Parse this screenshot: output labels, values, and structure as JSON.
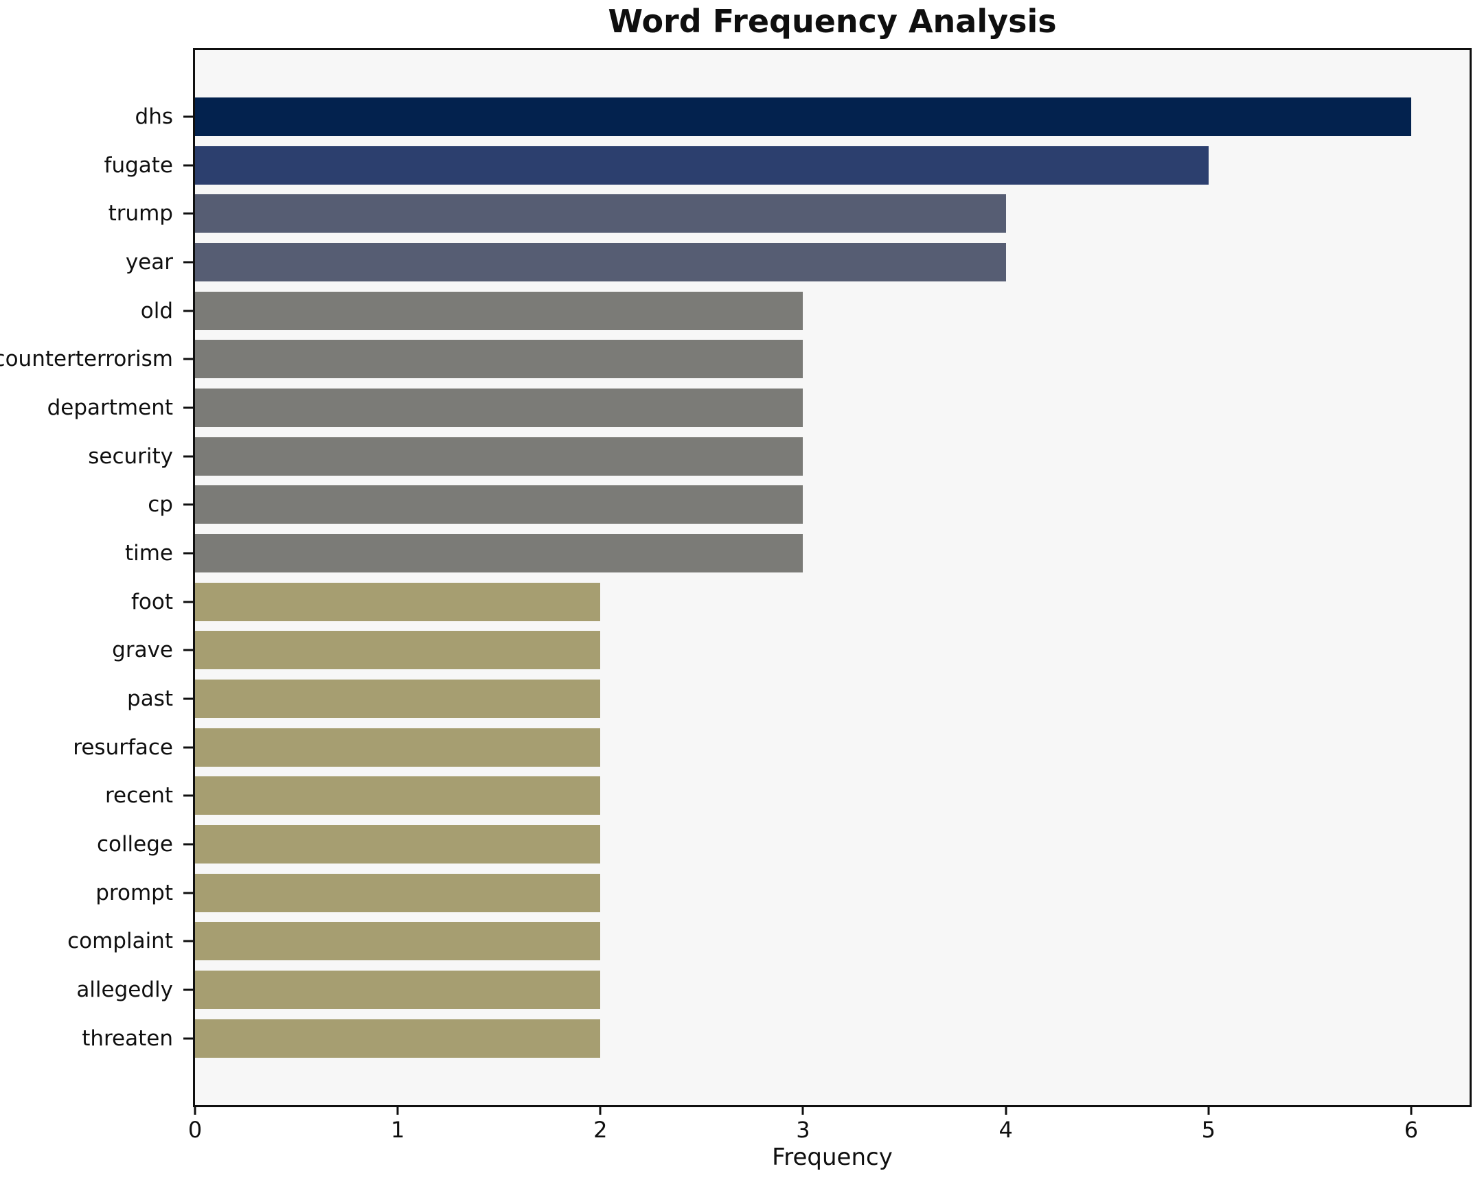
{
  "title": "Word Frequency Analysis",
  "chart_data": {
    "type": "bar",
    "orientation": "horizontal",
    "title": "Word Frequency Analysis",
    "xlabel": "Frequency",
    "ylabel": "",
    "categories": [
      "dhs",
      "fugate",
      "trump",
      "year",
      "old",
      "counterterrorism",
      "department",
      "security",
      "cp",
      "time",
      "foot",
      "grave",
      "past",
      "resurface",
      "recent",
      "college",
      "prompt",
      "complaint",
      "allegedly",
      "threaten"
    ],
    "values": [
      6,
      5,
      4,
      4,
      3,
      3,
      3,
      3,
      3,
      3,
      2,
      2,
      2,
      2,
      2,
      2,
      2,
      2,
      2,
      2
    ],
    "bar_colors": [
      "#03224e",
      "#2c3f6e",
      "#565d73",
      "#565d73",
      "#7b7b77",
      "#7b7b77",
      "#7b7b77",
      "#7b7b77",
      "#7b7b77",
      "#7b7b77",
      "#a69e71",
      "#a69e71",
      "#a69e71",
      "#a69e71",
      "#a69e71",
      "#a69e71",
      "#a69e71",
      "#a69e71",
      "#a69e71",
      "#a69e71"
    ],
    "x_ticks": [
      0,
      1,
      2,
      3,
      4,
      5,
      6
    ],
    "xlim": [
      0,
      6.288
    ],
    "grid": false,
    "legend": null,
    "plot_background": "#f7f7f7",
    "axis_color": "#0f0f0f"
  }
}
